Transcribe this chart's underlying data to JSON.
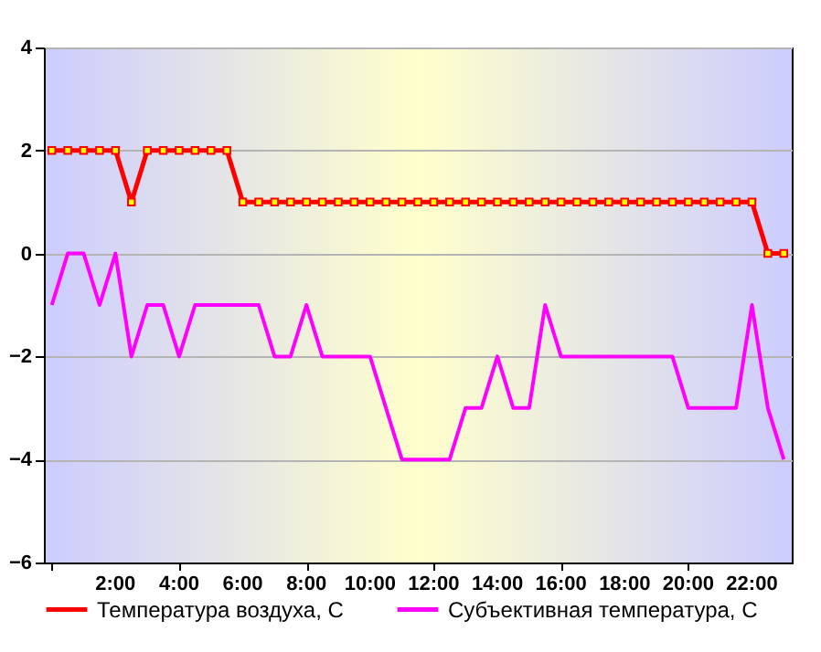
{
  "chart_data": {
    "type": "line",
    "categories": [
      null,
      null,
      null,
      null,
      "2:00",
      null,
      null,
      null,
      "4:00",
      null,
      null,
      null,
      "6:00",
      null,
      null,
      null,
      "8:00",
      null,
      null,
      null,
      "10:00",
      null,
      null,
      null,
      "12:00",
      null,
      null,
      null,
      "14:00",
      null,
      null,
      null,
      "16:00",
      null,
      null,
      null,
      "18:00",
      null,
      null,
      null,
      "20:00",
      null,
      null,
      null,
      "22:00",
      null,
      null
    ],
    "series": [
      {
        "name": "Температура воздуха, С",
        "color": "#ff0000",
        "marker": "square",
        "values": [
          2,
          2,
          2,
          2,
          2,
          1,
          2,
          2,
          2,
          2,
          2,
          2,
          1,
          1,
          1,
          1,
          1,
          1,
          1,
          1,
          1,
          1,
          1,
          1,
          1,
          1,
          1,
          1,
          1,
          1,
          1,
          1,
          1,
          1,
          1,
          1,
          1,
          1,
          1,
          1,
          1,
          1,
          1,
          1,
          1,
          0,
          0
        ]
      },
      {
        "name": "Субъективная температура, С",
        "color": "#ff00ff",
        "values": [
          -1,
          0,
          0,
          -1,
          0,
          -2,
          -1,
          -1,
          -2,
          -1,
          -1,
          -1,
          -1,
          -1,
          -2,
          -2,
          -1,
          -2,
          -2,
          -2,
          -2,
          -3,
          -4,
          -4,
          -4,
          -4,
          -3,
          -3,
          -2,
          -3,
          -3,
          -1,
          -2,
          -2,
          -2,
          -2,
          -2,
          -2,
          -2,
          -2,
          -3,
          -3,
          -3,
          -3,
          -1,
          -3,
          -4
        ]
      }
    ],
    "ylim": [
      -6,
      4
    ],
    "yticks": [
      -6,
      -4,
      -2,
      0,
      2,
      4
    ],
    "grid": "y",
    "legend": "bottom",
    "tick_labels": "xy"
  }
}
